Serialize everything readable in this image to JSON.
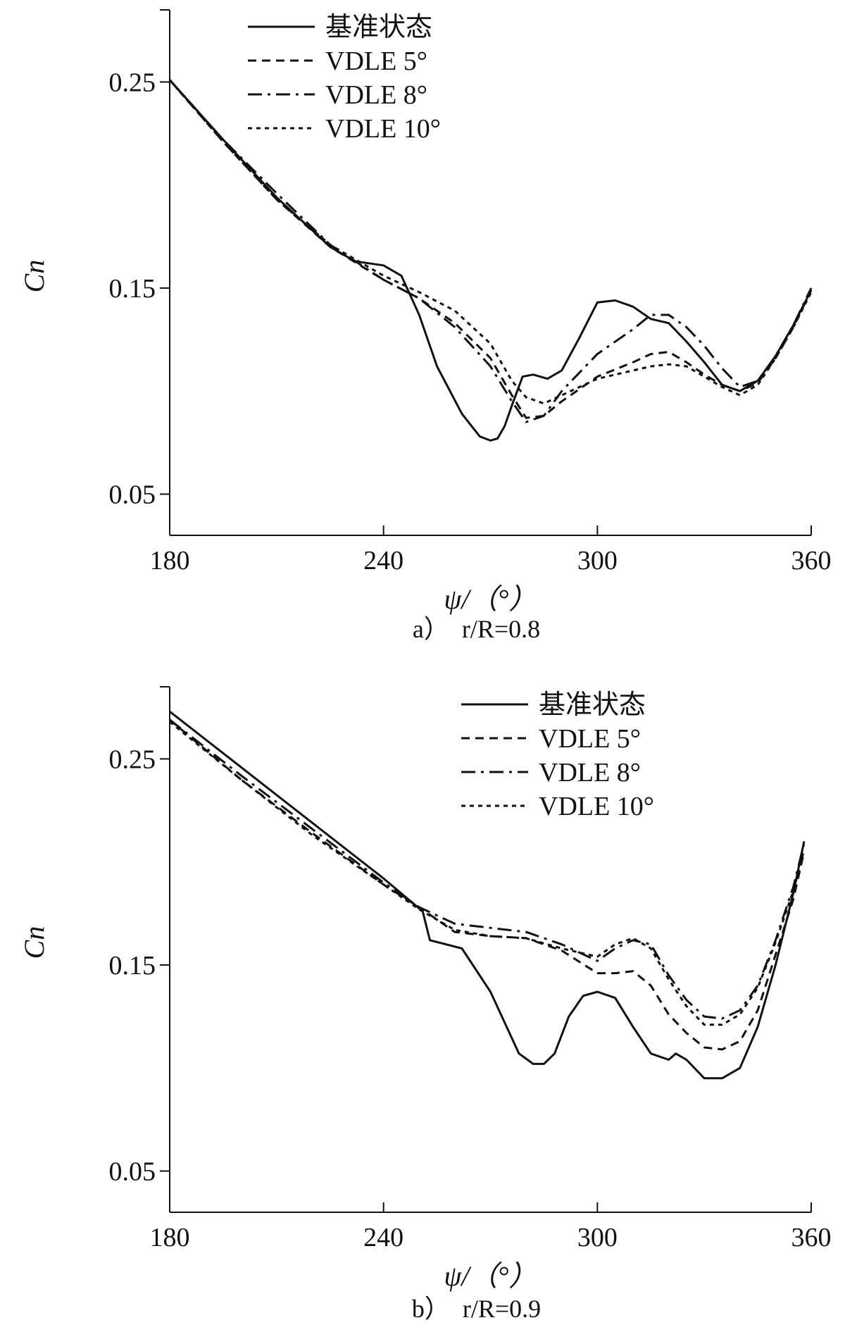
{
  "chart_data": [
    {
      "type": "line",
      "caption": "a）　r/R=0.8",
      "xlabel": "ψ/（°）",
      "ylabel": "Cn",
      "xlim": [
        180,
        360
      ],
      "ylim": [
        0.03,
        0.285
      ],
      "xticks": [
        180,
        240,
        300,
        360
      ],
      "yticks": [
        0.05,
        0.15,
        0.25
      ],
      "xtick_labels": [
        "180",
        "240",
        "300",
        "360"
      ],
      "ytick_labels": [
        "0.05",
        "0.15",
        "0.25"
      ],
      "legend_position": "top",
      "grid": false,
      "series": [
        {
          "name": "基准状态",
          "dash": "solid",
          "x": [
            180,
            195,
            210,
            225,
            232,
            240,
            245,
            250,
            255,
            262,
            267,
            270,
            272,
            274,
            276,
            279,
            282,
            286,
            290,
            295,
            300,
            305,
            310,
            315,
            320,
            325,
            330,
            335,
            340,
            345,
            350,
            355,
            360
          ],
          "y": [
            0.251,
            0.222,
            0.194,
            0.17,
            0.163,
            0.161,
            0.156,
            0.137,
            0.112,
            0.089,
            0.078,
            0.076,
            0.077,
            0.083,
            0.093,
            0.107,
            0.108,
            0.106,
            0.11,
            0.126,
            0.143,
            0.144,
            0.141,
            0.135,
            0.133,
            0.124,
            0.114,
            0.103,
            0.1,
            0.105,
            0.117,
            0.132,
            0.149
          ]
        },
        {
          "name": "VDLE 5°",
          "dash": "12,8",
          "x": [
            180,
            195,
            210,
            225,
            240,
            250,
            260,
            270,
            276,
            280,
            285,
            290,
            300,
            310,
            315,
            320,
            325,
            330,
            335,
            340,
            345,
            350,
            355,
            360
          ],
          "y": [
            0.251,
            0.221,
            0.193,
            0.17,
            0.154,
            0.145,
            0.133,
            0.116,
            0.098,
            0.087,
            0.088,
            0.095,
            0.107,
            0.114,
            0.118,
            0.119,
            0.114,
            0.108,
            0.103,
            0.1,
            0.104,
            0.116,
            0.131,
            0.149
          ]
        },
        {
          "name": "VDLE 8°",
          "dash": "20,8,4,8",
          "x": [
            180,
            195,
            210,
            225,
            240,
            250,
            260,
            270,
            276,
            280,
            285,
            290,
            300,
            310,
            315,
            320,
            325,
            330,
            335,
            340,
            345,
            350,
            355,
            360
          ],
          "y": [
            0.251,
            0.222,
            0.196,
            0.171,
            0.154,
            0.145,
            0.131,
            0.112,
            0.095,
            0.085,
            0.088,
            0.1,
            0.118,
            0.13,
            0.137,
            0.137,
            0.131,
            0.122,
            0.111,
            0.102,
            0.105,
            0.117,
            0.132,
            0.15
          ]
        },
        {
          "name": "VDLE 10°",
          "dash": "6,6",
          "x": [
            180,
            195,
            210,
            225,
            240,
            250,
            260,
            270,
            276,
            280,
            285,
            290,
            300,
            310,
            315,
            320,
            325,
            330,
            335,
            340,
            345,
            350,
            355,
            360
          ],
          "y": [
            0.251,
            0.221,
            0.193,
            0.171,
            0.156,
            0.148,
            0.139,
            0.123,
            0.105,
            0.097,
            0.094,
            0.098,
            0.106,
            0.11,
            0.112,
            0.113,
            0.112,
            0.107,
            0.102,
            0.098,
            0.103,
            0.116,
            0.131,
            0.148
          ]
        }
      ]
    },
    {
      "type": "line",
      "caption": "b）　r/R=0.9",
      "xlabel": "ψ/（°）",
      "ylabel": "Cn",
      "xlim": [
        180,
        360
      ],
      "ylim": [
        0.03,
        0.285
      ],
      "xticks": [
        180,
        240,
        300,
        360
      ],
      "yticks": [
        0.05,
        0.15,
        0.25
      ],
      "xtick_labels": [
        "180",
        "240",
        "300",
        "360"
      ],
      "ytick_labels": [
        "0.05",
        "0.15",
        "0.25"
      ],
      "legend_position": "top-right",
      "grid": false,
      "series": [
        {
          "name": "基准状态",
          "dash": "solid",
          "x": [
            180,
            200,
            220,
            240,
            251,
            253,
            262,
            270,
            278,
            282,
            285,
            288,
            292,
            296,
            300,
            305,
            310,
            315,
            320,
            322,
            325,
            330,
            335,
            340,
            345,
            350,
            355,
            358
          ],
          "y": [
            0.273,
            0.246,
            0.219,
            0.192,
            0.176,
            0.162,
            0.158,
            0.137,
            0.107,
            0.102,
            0.102,
            0.107,
            0.125,
            0.135,
            0.137,
            0.134,
            0.12,
            0.107,
            0.104,
            0.107,
            0.104,
            0.095,
            0.095,
            0.1,
            0.12,
            0.15,
            0.185,
            0.21
          ]
        },
        {
          "name": "VDLE 5°",
          "dash": "12,8",
          "x": [
            180,
            200,
            220,
            240,
            250,
            260,
            270,
            280,
            290,
            300,
            305,
            310,
            315,
            320,
            325,
            330,
            335,
            340,
            345,
            350,
            355,
            358
          ],
          "y": [
            0.269,
            0.24,
            0.214,
            0.189,
            0.178,
            0.166,
            0.164,
            0.163,
            0.157,
            0.146,
            0.146,
            0.147,
            0.14,
            0.126,
            0.117,
            0.11,
            0.109,
            0.113,
            0.128,
            0.155,
            0.182,
            0.205
          ]
        },
        {
          "name": "VDLE 8°",
          "dash": "20,8,4,8",
          "x": [
            180,
            200,
            220,
            240,
            250,
            260,
            270,
            280,
            290,
            300,
            305,
            310,
            315,
            320,
            325,
            330,
            335,
            340,
            345,
            350,
            355,
            358
          ],
          "y": [
            0.269,
            0.242,
            0.216,
            0.19,
            0.178,
            0.17,
            0.168,
            0.166,
            0.16,
            0.152,
            0.158,
            0.162,
            0.16,
            0.145,
            0.133,
            0.125,
            0.124,
            0.128,
            0.14,
            0.162,
            0.188,
            0.209
          ]
        },
        {
          "name": "VDLE 10°",
          "dash": "6,6",
          "x": [
            180,
            200,
            220,
            240,
            250,
            260,
            270,
            280,
            290,
            300,
            305,
            310,
            315,
            320,
            325,
            330,
            335,
            340,
            345,
            350,
            355,
            358
          ],
          "y": [
            0.268,
            0.24,
            0.213,
            0.189,
            0.177,
            0.167,
            0.164,
            0.163,
            0.158,
            0.154,
            0.16,
            0.163,
            0.158,
            0.143,
            0.13,
            0.121,
            0.121,
            0.126,
            0.139,
            0.161,
            0.186,
            0.206
          ]
        }
      ]
    }
  ]
}
